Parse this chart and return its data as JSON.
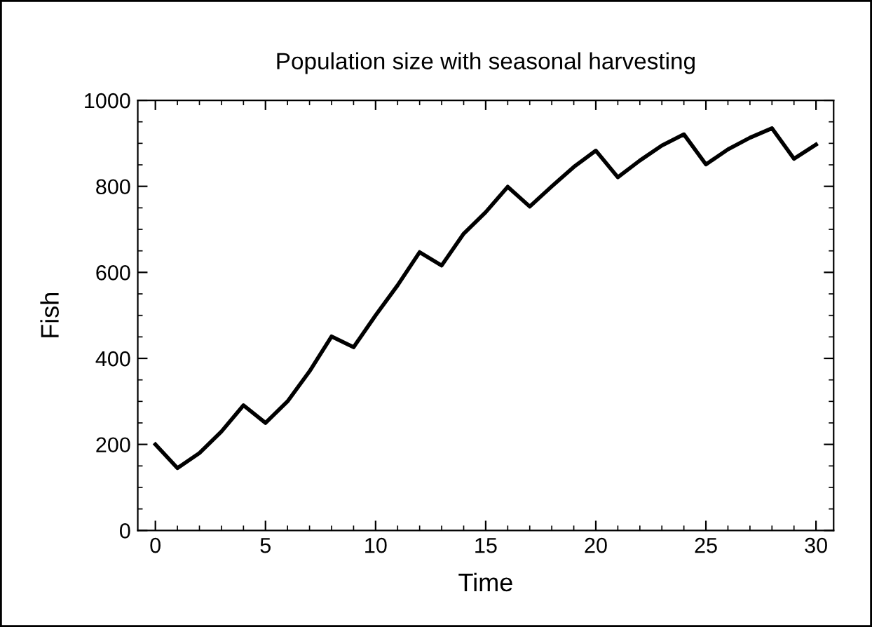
{
  "chart_data": {
    "type": "line",
    "title": "Population size with seasonal harvesting",
    "xlabel": "Time",
    "ylabel": "Fish",
    "x": [
      0,
      1,
      2,
      3,
      4,
      5,
      6,
      7,
      8,
      9,
      10,
      11,
      12,
      13,
      14,
      15,
      16,
      17,
      18,
      19,
      20,
      21,
      22,
      23,
      24,
      25,
      26,
      27,
      28,
      29,
      30
    ],
    "series": [
      {
        "color": "#000000",
        "values": [
          200,
          145,
          180,
          230,
          291,
          250,
          300,
          370,
          451,
          426,
          500,
          570,
          647,
          616,
          690,
          740,
          799,
          753,
          800,
          845,
          883,
          821,
          860,
          895,
          921,
          851,
          886,
          913,
          935,
          864,
          897
        ]
      }
    ],
    "xlim": [
      -0.8,
      30.8
    ],
    "ylim": [
      0,
      1000
    ],
    "xticks": [
      0,
      5,
      10,
      15,
      20,
      25,
      30
    ],
    "yticks": [
      0,
      200,
      400,
      600,
      800,
      1000
    ],
    "grid": false,
    "legend": false,
    "marker": "none",
    "line_style": "solid"
  }
}
